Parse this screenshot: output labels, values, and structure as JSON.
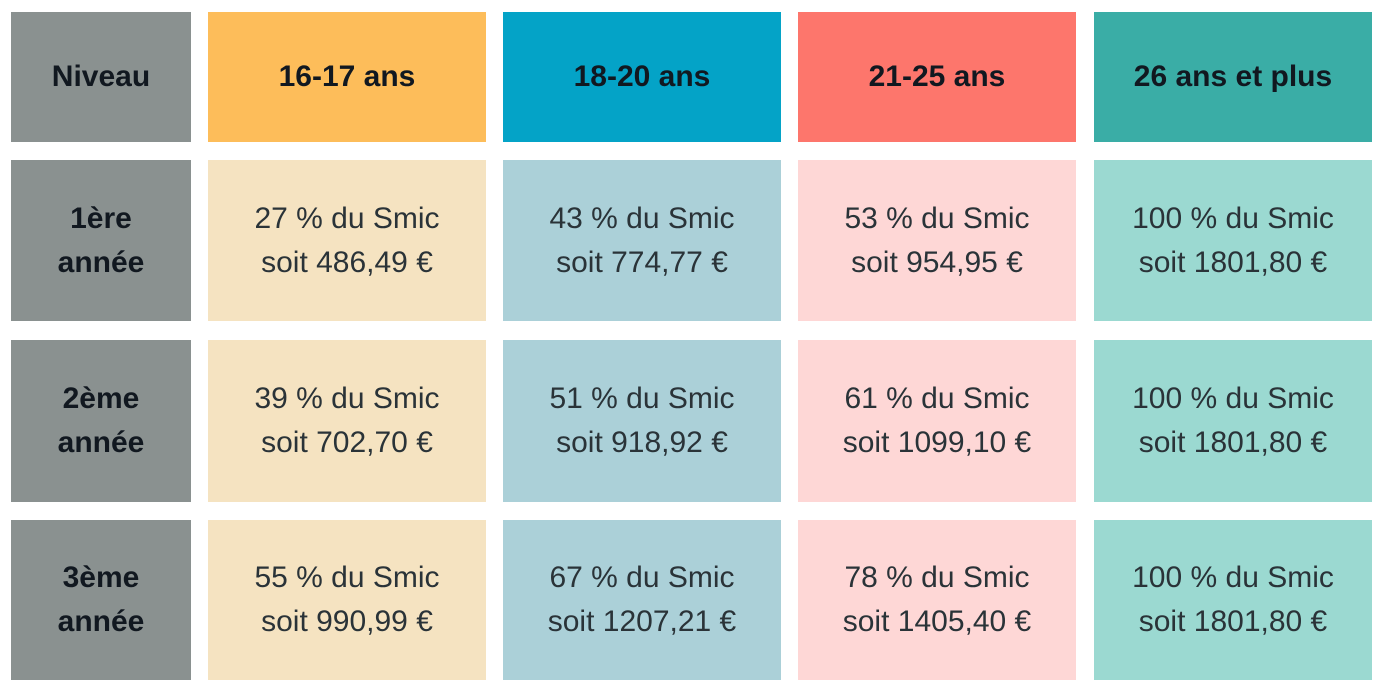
{
  "colors": {
    "level_bg": "#8a9190",
    "col1_header": "#fdbd5a",
    "col2_header": "#04a3c7",
    "col3_header": "#fd766c",
    "col4_header": "#3aada6",
    "col1_body": "#f5e3c1",
    "col2_body": "#abd0d8",
    "col3_body": "#fed7d6",
    "col4_body": "#9bd9d1"
  },
  "header": {
    "level": "Niveau",
    "columns": [
      "16-17 ans",
      "18-20 ans",
      "21-25 ans",
      "26 ans et plus"
    ]
  },
  "rows": [
    {
      "level_line1": "1ère",
      "level_line2": "année",
      "cells": [
        {
          "pct": "27 % du Smic",
          "amount": "soit 486,49 €"
        },
        {
          "pct": "43 % du Smic",
          "amount": "soit 774,77 €"
        },
        {
          "pct": "53 % du Smic",
          "amount": "soit 954,95 €"
        },
        {
          "pct": "100 % du Smic",
          "amount": "soit 1801,80 €"
        }
      ]
    },
    {
      "level_line1": "2ème",
      "level_line2": "année",
      "cells": [
        {
          "pct": "39 % du Smic",
          "amount": "soit 702,70 €"
        },
        {
          "pct": "51 % du Smic",
          "amount": "soit 918,92 €"
        },
        {
          "pct": "61 % du Smic",
          "amount": "soit 1099,10 €"
        },
        {
          "pct": "100 % du Smic",
          "amount": "soit 1801,80 €"
        }
      ]
    },
    {
      "level_line1": "3ème",
      "level_line2": "année",
      "cells": [
        {
          "pct": "55 % du Smic",
          "amount": "soit 990,99 €"
        },
        {
          "pct": "67 % du Smic",
          "amount": "soit 1207,21 €"
        },
        {
          "pct": "78 % du Smic",
          "amount": "soit 1405,40 €"
        },
        {
          "pct": "100 % du Smic",
          "amount": "soit 1801,80 €"
        }
      ]
    }
  ]
}
